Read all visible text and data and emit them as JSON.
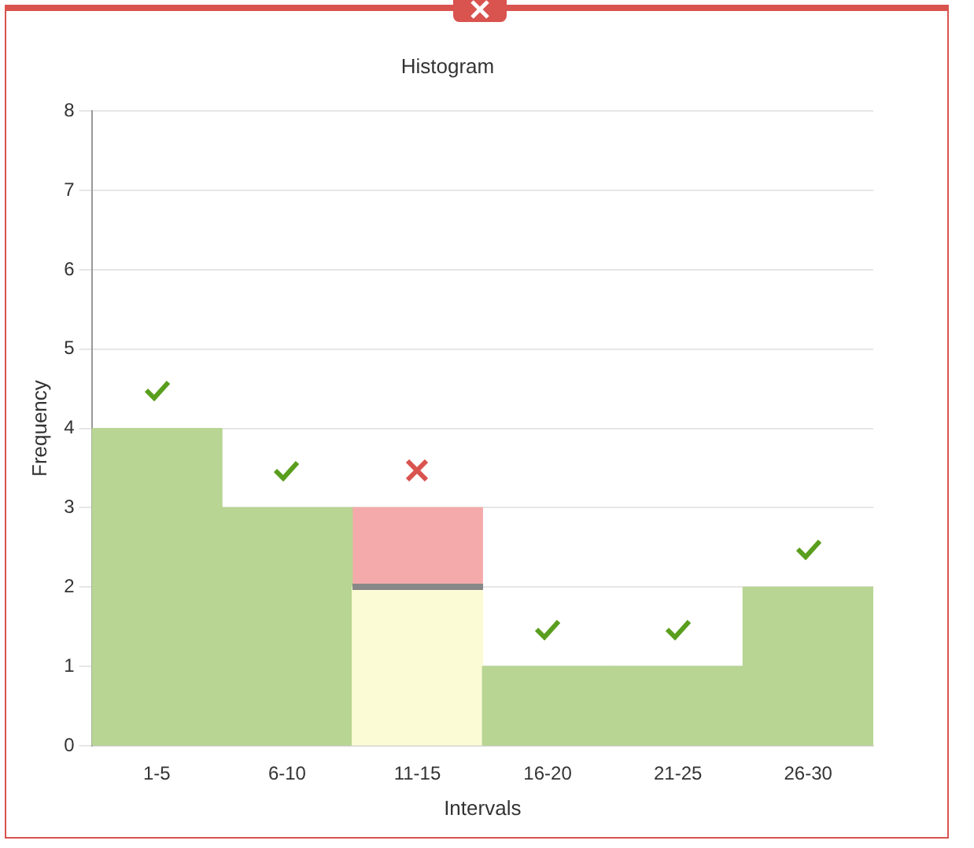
{
  "chart_data": {
    "type": "bar",
    "title": "Histogram",
    "xlabel": "Intervals",
    "ylabel": "Frequency",
    "categories": [
      "1-5",
      "6-10",
      "11-15",
      "16-20",
      "21-25",
      "26-30"
    ],
    "stacked": true,
    "series": [
      {
        "colors": [
          "#b8d593",
          "#b8d593",
          "#fbfbd5",
          "#b8d593",
          "#b8d593",
          "#b8d593"
        ],
        "values": [
          4,
          3,
          2,
          1,
          1,
          2
        ]
      },
      {
        "color": "#f4aaaa",
        "values": [
          null,
          null,
          1,
          null,
          null,
          null
        ]
      }
    ],
    "ylim": [
      0,
      8
    ],
    "yticks": [
      0,
      1,
      2,
      3,
      4,
      5,
      6,
      7,
      8
    ],
    "grid": "y",
    "legend": false
  }
}
